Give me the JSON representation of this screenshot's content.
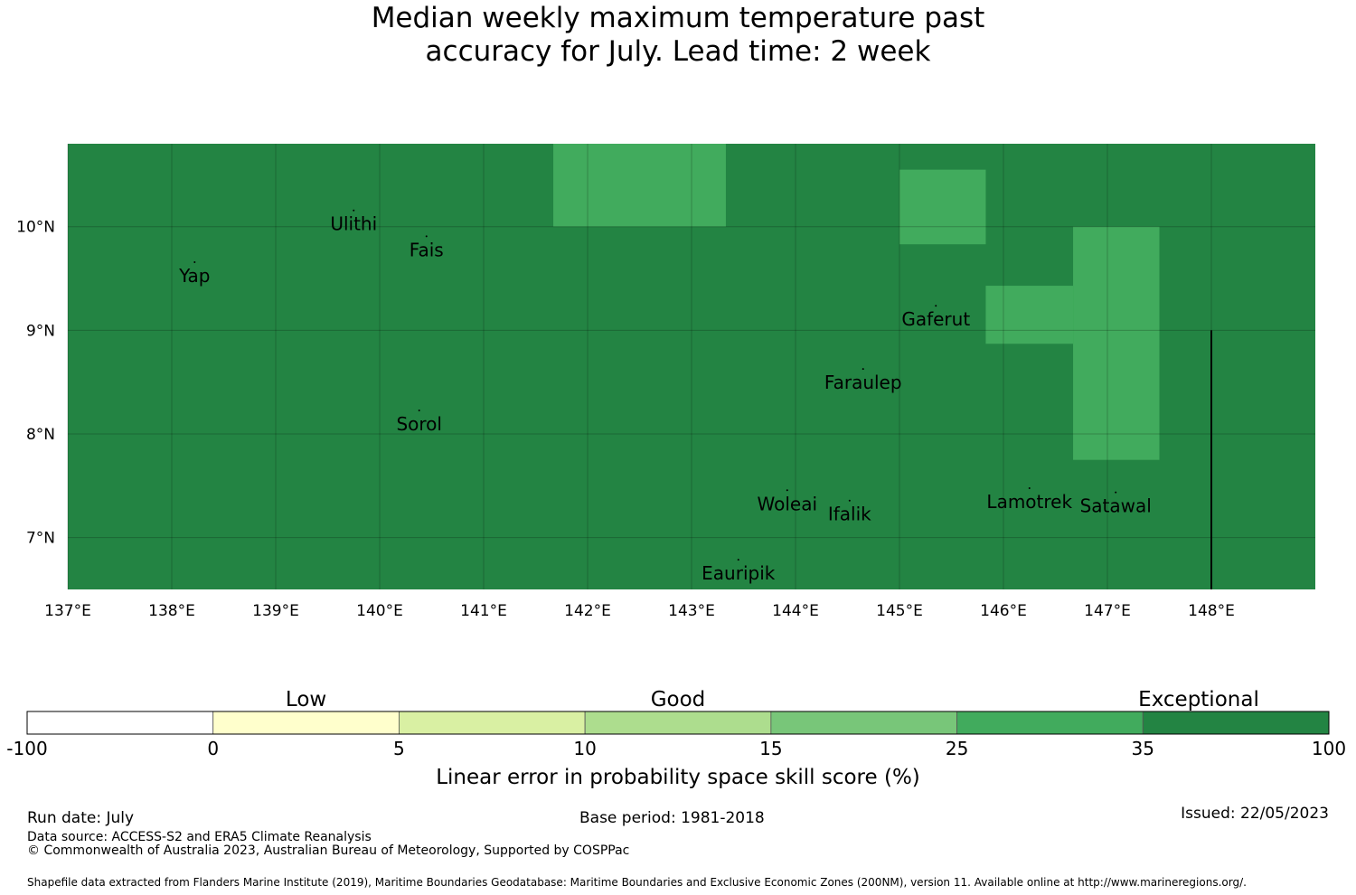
{
  "title": {
    "line1": "Median weekly maximum temperature past",
    "line2": "accuracy for July. Lead time: 2 week"
  },
  "map": {
    "lon_range": [
      137,
      149
    ],
    "lat_range": [
      6.5,
      10.8
    ],
    "background_color": "#238443",
    "highlight_color": "#41ab5d",
    "lon_ticks": [
      {
        "value": 137,
        "label": "137°E"
      },
      {
        "value": 138,
        "label": "138°E"
      },
      {
        "value": 139,
        "label": "139°E"
      },
      {
        "value": 140,
        "label": "140°E"
      },
      {
        "value": 141,
        "label": "141°E"
      },
      {
        "value": 142,
        "label": "142°E"
      },
      {
        "value": 143,
        "label": "143°E"
      },
      {
        "value": 144,
        "label": "144°E"
      },
      {
        "value": 145,
        "label": "145°E"
      },
      {
        "value": 146,
        "label": "146°E"
      },
      {
        "value": 147,
        "label": "147°E"
      },
      {
        "value": 148,
        "label": "148°E"
      }
    ],
    "lat_ticks": [
      {
        "value": 10,
        "label": "10°N"
      },
      {
        "value": 9,
        "label": "9°N"
      },
      {
        "value": 8,
        "label": "8°N"
      },
      {
        "value": 7,
        "label": "7°N"
      }
    ],
    "highlight_cells": [
      {
        "lon": [
          141.67,
          143.33
        ],
        "lat": [
          10.0,
          10.8
        ]
      },
      {
        "lon": [
          145.0,
          145.83
        ],
        "lat": [
          9.83,
          10.55
        ]
      },
      {
        "lon": [
          146.67,
          147.5
        ],
        "lat": [
          7.75,
          10.0
        ]
      },
      {
        "lon": [
          145.83,
          146.67
        ],
        "lat": [
          8.87,
          9.43
        ]
      }
    ],
    "boundary_line": {
      "lon": 148.0,
      "lat": [
        6.5,
        9.0
      ]
    },
    "places": [
      {
        "name": "Ulithi",
        "lon": 139.75,
        "lat": 10.0
      },
      {
        "name": "Fais",
        "lon": 140.45,
        "lat": 9.75
      },
      {
        "name": "Yap",
        "lon": 138.22,
        "lat": 9.5
      },
      {
        "name": "Gaferut",
        "lon": 145.35,
        "lat": 9.08
      },
      {
        "name": "Faraulep",
        "lon": 144.65,
        "lat": 8.47
      },
      {
        "name": "Sorol",
        "lon": 140.38,
        "lat": 8.07
      },
      {
        "name": "Woleai",
        "lon": 143.92,
        "lat": 7.3
      },
      {
        "name": "Ifalik",
        "lon": 144.52,
        "lat": 7.2
      },
      {
        "name": "Lamotrek",
        "lon": 146.25,
        "lat": 7.32
      },
      {
        "name": "Satawal",
        "lon": 147.08,
        "lat": 7.28
      },
      {
        "name": "Eauripik",
        "lon": 143.45,
        "lat": 6.63
      }
    ]
  },
  "colorbar": {
    "category_labels": [
      "Low",
      "Good",
      "Exceptional"
    ],
    "bins": [
      {
        "from": "-100",
        "to": "0",
        "color": "#ffffff"
      },
      {
        "from": "0",
        "to": "5",
        "color": "#ffffcc"
      },
      {
        "from": "5",
        "to": "10",
        "color": "#d9f0a3"
      },
      {
        "from": "10",
        "to": "15",
        "color": "#addd8e"
      },
      {
        "from": "15",
        "to": "25",
        "color": "#78c679"
      },
      {
        "from": "25",
        "to": "35",
        "color": "#41ab5d"
      },
      {
        "from": "35",
        "to": "100",
        "color": "#238443"
      }
    ],
    "tick_labels": [
      "-100",
      "0",
      "5",
      "10",
      "15",
      "25",
      "35",
      "100"
    ],
    "label": "Linear error in probability space skill score (%)"
  },
  "footer": {
    "run_date": "Run date: July",
    "base_period": "Base period: 1981-2018",
    "issued": "Issued: 22/05/2023",
    "data_source": "Data source: ACCESS-S2 and ERA5 Climate Reanalysis",
    "copyright": "© Commonwealth of Australia 2023, Australian Bureau of Meteorology, Supported by COSPPac",
    "shapefile_note": "Shapefile data extracted from Flanders Marine Institute (2019), Maritime Boundaries Geodatabase: Maritime Boundaries and Exclusive Economic Zones (200NM), version 11. Available online at http://www.marineregions.org/."
  }
}
